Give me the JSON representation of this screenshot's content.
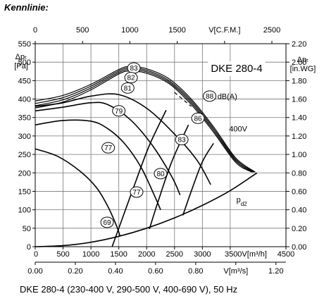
{
  "heading": "Kennlinie:",
  "caption": "DKE 280-4 (230-400 V, 290-500 V, 400-690 V), 50 Hz",
  "chart_data": {
    "type": "line",
    "title": "DKE 280-4",
    "x_axis_bottom": {
      "label": "V[m³/h]",
      "range": [
        0,
        4500
      ],
      "ticks": [
        0,
        500,
        1000,
        1500,
        2000,
        2500,
        3000,
        3500,
        4500
      ],
      "tick_labels": [
        "0",
        "500",
        "1000",
        "1500",
        "2000",
        "2500",
        "3000",
        "3500V[m³/h]",
        "4500"
      ]
    },
    "x_axis_bottom2": {
      "label": "V[m³/s]",
      "range": [
        0,
        1.25
      ],
      "ticks": [
        0,
        0.2,
        0.4,
        0.6,
        0.8,
        1.0,
        1.2
      ],
      "tick_labels": [
        "0.00",
        "0.20",
        "0.40",
        "0.60",
        "0.80",
        "V[m³/s]",
        "1.20"
      ]
    },
    "x_axis_top": {
      "label": "V[C.F.M.]",
      "range": [
        0,
        2650
      ],
      "ticks": [
        0,
        500,
        1000,
        1500,
        2000,
        2500
      ],
      "tick_labels": [
        "0",
        "500",
        "1000",
        "1500",
        "V[C.F.M.]",
        "2500"
      ]
    },
    "y_axis_left": {
      "label": "Δpt [Pa]",
      "label_lines": [
        "Δpₜ",
        "[Pa]"
      ],
      "range": [
        0,
        550
      ],
      "ticks": [
        0,
        50,
        100,
        150,
        200,
        250,
        300,
        350,
        400,
        450,
        500,
        550
      ]
    },
    "y_axis_right": {
      "label": "Δpt [in.WG]",
      "label_lines": [
        "Δpₜ",
        "[in.WG]"
      ],
      "range": [
        0,
        2.2
      ],
      "ticks": [
        0,
        0.2,
        0.4,
        0.6,
        0.8,
        1.0,
        1.2,
        1.4,
        1.6,
        1.8,
        2.0,
        2.2
      ],
      "tick_labels": [
        "0.00",
        "0.20",
        "0.40",
        "0.60",
        "0.80",
        "1.00",
        "1.20",
        "1.40",
        "1.60",
        "1.80",
        "2.00",
        "2.20"
      ]
    },
    "grid": true,
    "fan_curves": [
      {
        "name": "400V",
        "points": [
          [
            0,
            395
          ],
          [
            500,
            410
          ],
          [
            1000,
            440
          ],
          [
            1500,
            480
          ],
          [
            1700,
            488
          ],
          [
            2000,
            482
          ],
          [
            2400,
            455
          ],
          [
            2800,
            400
          ],
          [
            3200,
            325
          ],
          [
            3600,
            240
          ],
          [
            3950,
            202
          ]
        ]
      },
      {
        "name": "",
        "points": [
          [
            0,
            388
          ],
          [
            500,
            404
          ],
          [
            1000,
            435
          ],
          [
            1500,
            476
          ],
          [
            1700,
            484
          ],
          [
            2000,
            478
          ],
          [
            2400,
            450
          ],
          [
            2800,
            395
          ],
          [
            3200,
            320
          ],
          [
            3600,
            236
          ],
          [
            3930,
            202
          ]
        ]
      },
      {
        "name": "",
        "points": [
          [
            0,
            382
          ],
          [
            500,
            398
          ],
          [
            1000,
            430
          ],
          [
            1500,
            472
          ],
          [
            1700,
            480
          ],
          [
            2000,
            474
          ],
          [
            2400,
            446
          ],
          [
            2800,
            390
          ],
          [
            3200,
            315
          ],
          [
            3600,
            232
          ],
          [
            3910,
            202
          ]
        ]
      },
      {
        "name": "",
        "points": [
          [
            0,
            376
          ],
          [
            500,
            392
          ],
          [
            1000,
            425
          ],
          [
            1500,
            468
          ],
          [
            1700,
            476
          ],
          [
            2000,
            470
          ],
          [
            2400,
            442
          ],
          [
            2800,
            385
          ],
          [
            3200,
            310
          ],
          [
            3600,
            228
          ],
          [
            3890,
            202
          ]
        ]
      },
      {
        "name": "",
        "points": [
          [
            0,
            380
          ],
          [
            500,
            390
          ],
          [
            1000,
            408
          ],
          [
            1500,
            412
          ],
          [
            2000,
            375
          ],
          [
            2500,
            305
          ],
          [
            2900,
            235
          ],
          [
            3150,
            168
          ]
        ]
      },
      {
        "name": "",
        "points": [
          [
            0,
            368
          ],
          [
            500,
            378
          ],
          [
            1000,
            390
          ],
          [
            1300,
            385
          ],
          [
            1700,
            345
          ],
          [
            2100,
            275
          ],
          [
            2450,
            190
          ],
          [
            2600,
            140
          ]
        ]
      },
      {
        "name": "",
        "points": [
          [
            0,
            330
          ],
          [
            500,
            342
          ],
          [
            1000,
            340
          ],
          [
            1300,
            320
          ],
          [
            1600,
            280
          ],
          [
            1900,
            215
          ],
          [
            2150,
            135
          ],
          [
            2250,
            100
          ]
        ]
      },
      {
        "name": "",
        "points": [
          [
            0,
            265
          ],
          [
            400,
            245
          ],
          [
            800,
            205
          ],
          [
            1100,
            160
          ],
          [
            1300,
            110
          ],
          [
            1450,
            60
          ],
          [
            1520,
            30
          ]
        ]
      }
    ],
    "system_curve": {
      "name": "pd2",
      "points": [
        [
          0,
          0
        ],
        [
          500,
          3
        ],
        [
          1000,
          12
        ],
        [
          1500,
          28
        ],
        [
          2000,
          50
        ],
        [
          2500,
          78
        ],
        [
          3000,
          112
        ],
        [
          3500,
          152
        ],
        [
          3980,
          200
        ]
      ]
    },
    "efficiency_lines": [
      {
        "points": [
          [
            1380,
            0
          ],
          [
            1560,
            75
          ],
          [
            1800,
            175
          ],
          [
            2050,
            275
          ],
          [
            2350,
            370
          ]
        ]
      },
      {
        "points": [
          [
            2050,
            48
          ],
          [
            2200,
            120
          ],
          [
            2450,
            230
          ],
          [
            2750,
            330
          ]
        ]
      },
      {
        "points": [
          [
            2650,
            85
          ],
          [
            2800,
            150
          ],
          [
            3000,
            230
          ],
          [
            3200,
            280
          ]
        ]
      }
    ],
    "dashed_line": {
      "points": [
        [
          2500,
          418
        ],
        [
          2800,
          380
        ]
      ]
    },
    "efficiency_labels": [
      {
        "text": "83",
        "x": 1770,
        "y": 484
      },
      {
        "text": "82",
        "x": 1720,
        "y": 458
      },
      {
        "text": "81",
        "x": 1660,
        "y": 430
      },
      {
        "text": "79",
        "x": 1500,
        "y": 368
      },
      {
        "text": "77",
        "x": 1310,
        "y": 268
      },
      {
        "text": "80",
        "x": 2250,
        "y": 198
      },
      {
        "text": "77",
        "x": 1820,
        "y": 148
      },
      {
        "text": "69",
        "x": 1290,
        "y": 66
      },
      {
        "text": "83",
        "x": 2630,
        "y": 290
      },
      {
        "text": "86",
        "x": 2920,
        "y": 348
      },
      {
        "text": "88",
        "x": 3130,
        "y": 408
      }
    ],
    "annotations": [
      {
        "text": "dB(A)",
        "x": 3270,
        "y": 408
      },
      {
        "text": "400V",
        "x": 3480,
        "y": 320
      },
      {
        "text": "p",
        "sub": "d2",
        "x": 3610,
        "y": 128
      }
    ]
  }
}
